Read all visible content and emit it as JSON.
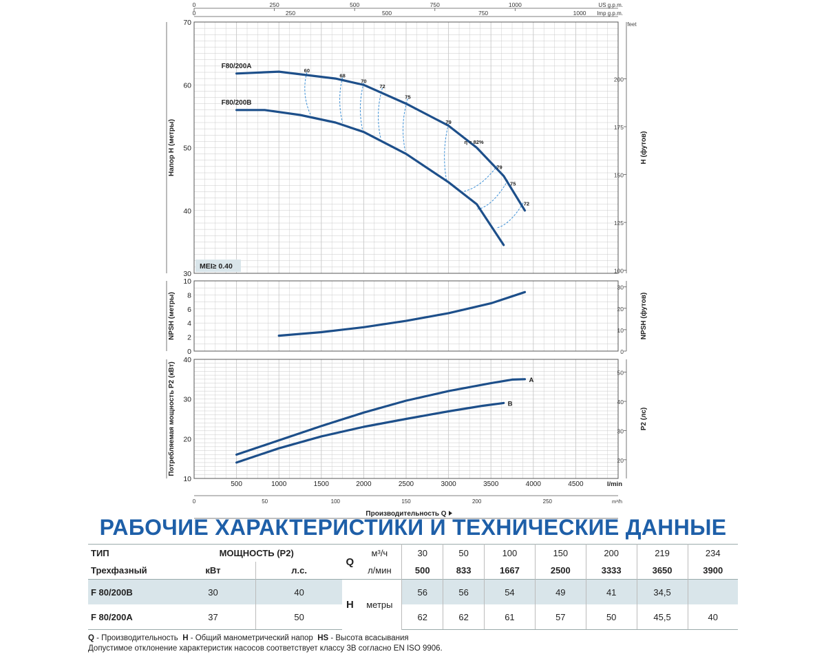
{
  "chart_data": [
    {
      "type": "line",
      "name": "head",
      "ylabel": "Напор H (метры)",
      "ylabel2": "H (футов)",
      "ylim": [
        30,
        70
      ],
      "xlim": [
        0,
        5000
      ],
      "yticks": [
        30,
        40,
        50,
        60,
        70
      ],
      "y2unit": "feet",
      "y2ticks": [
        "100",
        "125",
        "150",
        "175",
        "200"
      ],
      "y2tick_values_m": [
        30.48,
        38.1,
        45.72,
        53.34,
        60.96
      ],
      "top_axis_us": {
        "unit": "US g.p.m.",
        "ticks": [
          "0",
          "250",
          "500",
          "750",
          "1000"
        ],
        "values_lmin": [
          0,
          946.4,
          1892.7,
          2839.1,
          3785.4
        ]
      },
      "top_axis_imp": {
        "unit": "Imp g.p.m.",
        "ticks": [
          "0",
          "250",
          "500",
          "750",
          "1000"
        ],
        "values_lmin": [
          0,
          1136.5,
          2273,
          3409.6,
          4546.1
        ]
      },
      "badge": "MEI≥ 0.40",
      "series": [
        {
          "name": "F80/200A",
          "x": [
            500,
            1000,
            1667,
            2000,
            2500,
            3000,
            3333,
            3650,
            3900
          ],
          "y": [
            61.8,
            62.1,
            61,
            60,
            57,
            53.5,
            50,
            45.5,
            40
          ]
        },
        {
          "name": "F80/200B",
          "x": [
            500,
            833,
            1250,
            1667,
            2000,
            2500,
            3000,
            3333,
            3650
          ],
          "y": [
            56,
            56,
            55.2,
            54,
            52.5,
            49,
            44.5,
            41,
            34.5
          ]
        }
      ],
      "efficiency_labels": [
        {
          "text": "60",
          "x": 1330,
          "y": 62
        },
        {
          "text": "68",
          "x": 1750,
          "y": 61.2
        },
        {
          "text": "70",
          "x": 2000,
          "y": 60.3
        },
        {
          "text": "72",
          "x": 2220,
          "y": 59.5
        },
        {
          "text": "75",
          "x": 2520,
          "y": 57.8
        },
        {
          "text": "79",
          "x": 3000,
          "y": 53.8
        },
        {
          "text": "η = 82%",
          "x": 3300,
          "y": 50.6
        },
        {
          "text": "79",
          "x": 3600,
          "y": 46.6
        },
        {
          "text": "75",
          "x": 3760,
          "y": 44
        },
        {
          "text": "72",
          "x": 3920,
          "y": 40.8
        }
      ]
    },
    {
      "type": "line",
      "name": "npsh",
      "ylabel": "NPSH (метры)",
      "ylabel2": "NPSH (футов)",
      "ylim": [
        0,
        10
      ],
      "xlim": [
        0,
        5000
      ],
      "yticks": [
        0,
        2,
        4,
        6,
        8,
        10
      ],
      "y2ticks": [
        "0",
        "10",
        "20",
        "30"
      ],
      "y2tick_values_m": [
        0,
        3.048,
        6.096,
        9.144
      ],
      "series": [
        {
          "name": "",
          "x": [
            1000,
            1500,
            2000,
            2500,
            3000,
            3500,
            3900
          ],
          "y": [
            2.2,
            2.7,
            3.4,
            4.3,
            5.4,
            6.8,
            8.4
          ]
        }
      ]
    },
    {
      "type": "line",
      "name": "power",
      "ylabel": "Потребляемая мощность P2 (кВт)",
      "ylabel2": "P2 (лс)",
      "ylim": [
        10,
        40
      ],
      "xlim": [
        0,
        5000
      ],
      "yticks": [
        10,
        20,
        30,
        40
      ],
      "y2ticks": [
        "20",
        "30",
        "40",
        "50"
      ],
      "y2tick_values_kw": [
        14.71,
        22.07,
        29.42,
        36.78
      ],
      "x_lmin_ticks": [
        500,
        1000,
        1500,
        2000,
        2500,
        3000,
        3500,
        4000,
        4500
      ],
      "x_lmin_unit": "l/min",
      "x_m3h_ticks": [
        "0",
        "50",
        "100",
        "150",
        "200",
        "250"
      ],
      "x_m3h_unit": "m³/h",
      "xlabel": "Производительность Q",
      "series": [
        {
          "name": "A",
          "x": [
            500,
            1000,
            1500,
            2000,
            2500,
            3000,
            3500,
            3750,
            3900
          ],
          "y": [
            16,
            19.6,
            23.2,
            26.6,
            29.6,
            32,
            34,
            34.9,
            35
          ]
        },
        {
          "name": "B",
          "x": [
            500,
            1000,
            1500,
            2000,
            2500,
            3000,
            3400,
            3650
          ],
          "y": [
            14,
            17.6,
            20.6,
            23,
            25,
            26.9,
            28.3,
            29
          ]
        }
      ]
    }
  ],
  "heading": "РАБОЧИЕ ХАРАКТЕРИСТИКИ И ТЕХНИЧЕСКИЕ ДАННЫЕ",
  "table": {
    "type_label": "ТИП",
    "power_label": "МОЩНОСТЬ (P2)",
    "q_label": "Q",
    "q_unit_m3h": "м³/ч",
    "q_unit_lmin": "л/мин",
    "phase_label": "Трехфазный",
    "kw_label": "кВт",
    "hp_label": "л.с.",
    "h_label": "H",
    "h_unit": "метры",
    "q_m3h": [
      "30",
      "50",
      "100",
      "150",
      "200",
      "219",
      "234"
    ],
    "q_lmin": [
      "500",
      "833",
      "1667",
      "2500",
      "3333",
      "3650",
      "3900"
    ],
    "rows": [
      {
        "model": "F 80/200B",
        "kw": "30",
        "hp": "40",
        "h": [
          "56",
          "56",
          "54",
          "49",
          "41",
          "34,5",
          ""
        ]
      },
      {
        "model": "F 80/200A",
        "kw": "37",
        "hp": "50",
        "h": [
          "62",
          "62",
          "61",
          "57",
          "50",
          "45,5",
          "40"
        ]
      }
    ]
  },
  "notes": {
    "q_key": "Q",
    "q_text": " - Производительность",
    "h_key": "H",
    "h_text": " - Общий манометрический напор",
    "hs_key": "HS",
    "hs_text": " - Высота всасывания",
    "line2": "Допустимое отклонение характеристик насосов соответствует классу 3В согласно EN ISO 9906."
  },
  "colors": {
    "curve": "#1d4f8a",
    "efficiency": "#3b8fd6",
    "heading": "#1e5fa8",
    "grid": "#c8c8c8",
    "shade": "#d9e5ea"
  }
}
